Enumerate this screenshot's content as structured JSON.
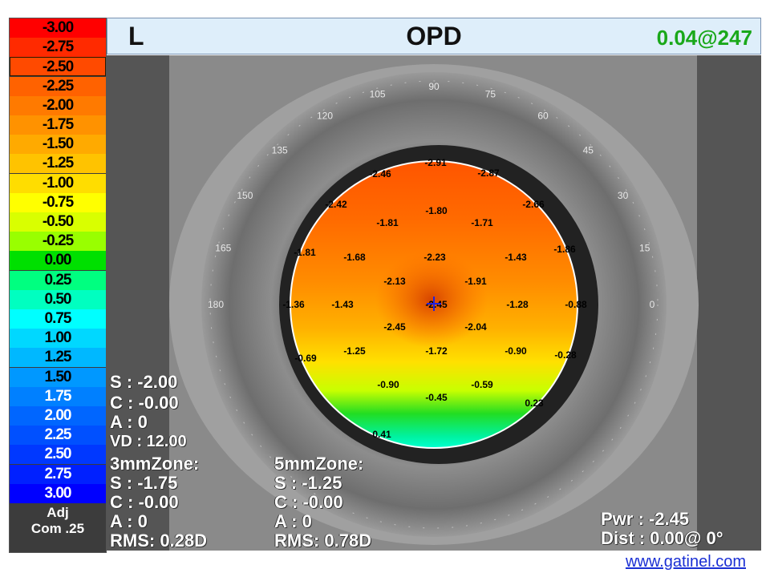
{
  "scale": {
    "selected_value": "-2.50",
    "items": [
      {
        "label": "-3.00",
        "color": "#ff0000",
        "text": "#000000"
      },
      {
        "label": "-2.75",
        "color": "#ff2a00",
        "text": "#000000"
      },
      {
        "label": "-2.50",
        "color": "#ff4a00",
        "text": "#000000"
      },
      {
        "label": "-2.25",
        "color": "#ff6200",
        "text": "#000000"
      },
      {
        "label": "-2.00",
        "color": "#ff7a00",
        "text": "#000000"
      },
      {
        "label": "-1.75",
        "color": "#ff9200",
        "text": "#000000"
      },
      {
        "label": "-1.50",
        "color": "#ffaa00",
        "text": "#000000"
      },
      {
        "label": "-1.25",
        "color": "#ffc300",
        "text": "#000000"
      },
      {
        "label": "-1.00",
        "color": "#ffdd00",
        "text": "#000000"
      },
      {
        "label": "-0.75",
        "color": "#ffff00",
        "text": "#000000"
      },
      {
        "label": "-0.50",
        "color": "#d9ff00",
        "text": "#000000"
      },
      {
        "label": "-0.25",
        "color": "#99ff00",
        "text": "#000000"
      },
      {
        "label": "0.00",
        "color": "#00e000",
        "text": "#000000"
      },
      {
        "label": "0.25",
        "color": "#00ff80",
        "text": "#000000"
      },
      {
        "label": "0.50",
        "color": "#00ffc0",
        "text": "#000000"
      },
      {
        "label": "0.75",
        "color": "#00ffff",
        "text": "#000000"
      },
      {
        "label": "1.00",
        "color": "#00d8ff",
        "text": "#000000"
      },
      {
        "label": "1.25",
        "color": "#00b8ff",
        "text": "#000000"
      },
      {
        "label": "1.50",
        "color": "#0098ff",
        "text": "#000000"
      },
      {
        "label": "1.75",
        "color": "#0080ff",
        "text": "#ffffff"
      },
      {
        "label": "2.00",
        "color": "#0066ff",
        "text": "#ffffff"
      },
      {
        "label": "2.25",
        "color": "#0050ff",
        "text": "#ffffff"
      },
      {
        "label": "2.50",
        "color": "#0038ff",
        "text": "#ffffff"
      },
      {
        "label": "2.75",
        "color": "#0020ff",
        "text": "#ffffff"
      },
      {
        "label": "3.00",
        "color": "#0000ff",
        "text": "#ffffff"
      }
    ],
    "adj_line1": "Adj",
    "adj_line2": "Com .25"
  },
  "header": {
    "eye": "L",
    "title": "OPD",
    "pupil_info": "0.04@247",
    "pupil_info_color": "#1aa81a"
  },
  "axis_labels": [
    "0",
    "15",
    "30",
    "45",
    "60",
    "75",
    "90",
    "105",
    "120",
    "135",
    "150",
    "165",
    "180"
  ],
  "map_values": [
    "-2.91",
    "-2.46",
    "-2.87",
    "-2.42",
    "-1.80",
    "-2.66",
    "-1.81",
    "-1.71",
    "-1.81",
    "-1.68",
    "-2.23",
    "-1.43",
    "-1.86",
    "-2.13",
    "-1.91",
    "-1.36",
    "-1.43",
    "-2.45",
    "-1.28",
    "-0.88",
    "-2.45",
    "-2.04",
    "-0.69",
    "-1.25",
    "-1.72",
    "-0.90",
    "-0.28",
    "-0.90",
    "-0.59",
    "-0.45",
    "0.23",
    "0.41"
  ],
  "left_panel": {
    "s": "S :  -2.00",
    "c": "C : -0.00",
    "a": "A :   0",
    "vd": "VD : 12.00"
  },
  "zone3": {
    "title": "3mmZone:",
    "s": "S :  -1.75",
    "c": "C : -0.00",
    "a": "A :   0",
    "rms": "RMS: 0.28D"
  },
  "zone5": {
    "title": "5mmZone:",
    "s": "S :  -1.25",
    "c": "C : -0.00",
    "a": "A :   0",
    "rms": "RMS: 0.78D"
  },
  "cursor": {
    "pwr": "Pwr :  -2.45",
    "dist": "Dist :  0.00@  0°"
  },
  "credit": "www.gatinel.com"
}
